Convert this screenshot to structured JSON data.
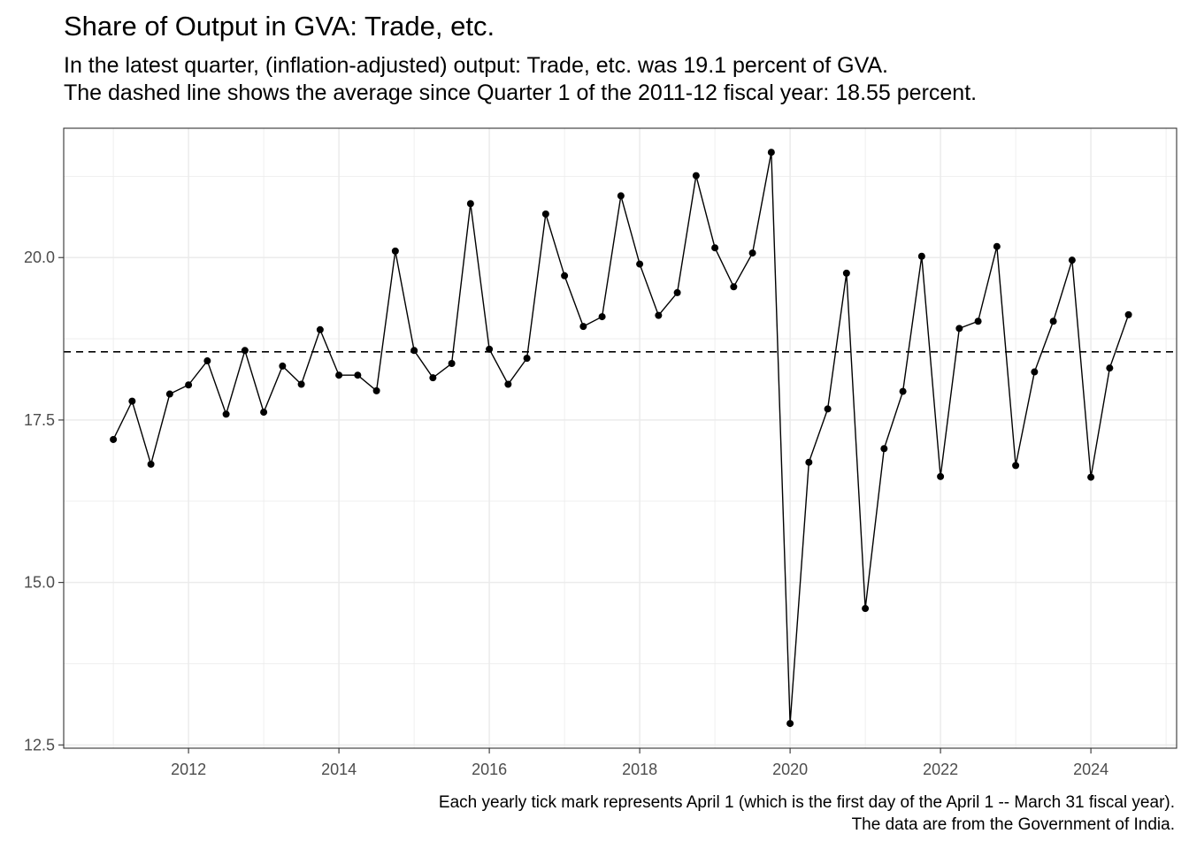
{
  "title": "Share of Output in GVA: Trade, etc.",
  "subtitle_lines": [
    "In the latest quarter, (inflation-adjusted) output: Trade, etc. was 19.1 percent of GVA.",
    "The dashed line shows the average since Quarter 1 of the 2011-12 fiscal year: 18.55 percent."
  ],
  "caption_lines": [
    "Each yearly tick mark represents April 1 (which is the first day of the April 1 -- March 31 fiscal year).",
    "The data are from the Government of India."
  ],
  "chart_data": {
    "type": "line",
    "title": "Share of Output in GVA: Trade, etc.",
    "xlabel": "",
    "ylabel": "",
    "x_ticks": [
      "2012",
      "2014",
      "2016",
      "2018",
      "2020",
      "2022",
      "2024"
    ],
    "y_ticks": [
      "12.5",
      "15.0",
      "17.5",
      "20.0"
    ],
    "xlim": [
      2010.34,
      2025.14
    ],
    "ylim": [
      12.45,
      21.99
    ],
    "grid": true,
    "average": 18.55,
    "series": [
      {
        "x": [
          2011.0,
          2011.25,
          2011.5,
          2011.75,
          2012.0,
          2012.25,
          2012.5,
          2012.75,
          2013.0,
          2013.25,
          2013.5,
          2013.75,
          2014.0,
          2014.25,
          2014.5,
          2014.75,
          2015.0,
          2015.25,
          2015.5,
          2015.75,
          2016.0,
          2016.25,
          2016.5,
          2016.75,
          2017.0,
          2017.25,
          2017.5,
          2017.75,
          2018.0,
          2018.25,
          2018.5,
          2018.75,
          2019.0,
          2019.25,
          2019.5,
          2019.75,
          2020.0,
          2020.25,
          2020.5,
          2020.75,
          2021.0,
          2021.25,
          2021.5,
          2021.75,
          2022.0,
          2022.25,
          2022.5,
          2022.75,
          2023.0,
          2023.25,
          2023.5,
          2023.75,
          2024.0,
          2024.25,
          2024.5
        ],
        "values": [
          17.2,
          17.79,
          16.82,
          17.9,
          18.04,
          18.41,
          17.59,
          18.57,
          17.62,
          18.33,
          18.05,
          18.89,
          18.19,
          18.19,
          17.95,
          20.1,
          18.57,
          18.15,
          18.37,
          20.83,
          18.59,
          18.05,
          18.45,
          20.67,
          19.72,
          18.94,
          19.09,
          20.95,
          19.9,
          19.11,
          19.46,
          21.26,
          20.15,
          19.55,
          20.07,
          21.62,
          12.83,
          16.85,
          17.67,
          19.76,
          14.6,
          17.06,
          17.94,
          20.02,
          16.63,
          18.91,
          19.02,
          20.17,
          16.8,
          18.24,
          19.02,
          19.96,
          16.62,
          18.3,
          19.12
        ]
      }
    ]
  }
}
